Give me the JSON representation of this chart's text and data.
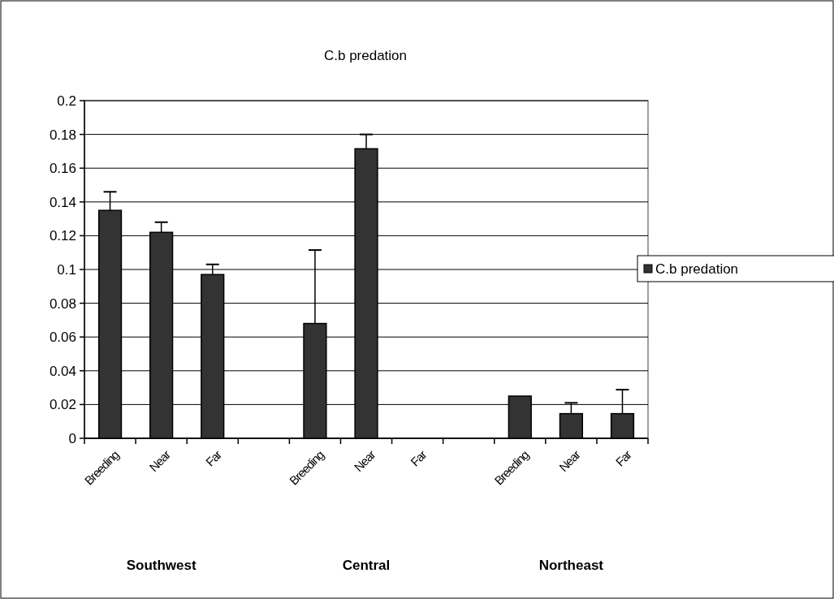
{
  "chart_data": {
    "type": "bar",
    "title": "C.b predation",
    "categories": [
      "Breeding",
      "Near",
      "Far",
      null,
      "Breeding",
      "Near",
      "Far",
      null,
      "Breeding",
      "Near",
      "Far"
    ],
    "series": [
      {
        "name": "C.b predation",
        "color": "#333333",
        "values": [
          0.135,
          0.122,
          0.097,
          null,
          0.068,
          0.1715,
          null,
          null,
          0.025,
          0.0146,
          0.0146
        ],
        "errors": [
          [
            0.135,
            0.146
          ],
          [
            0.122,
            0.128
          ],
          [
            0.097,
            0.103
          ],
          null,
          [
            0.068,
            0.1115
          ],
          [
            0.1715,
            0.18
          ],
          null,
          null,
          null,
          [
            0.0146,
            0.021
          ],
          [
            0.0146,
            0.0288
          ]
        ]
      }
    ],
    "ylim": [
      0,
      0.2
    ],
    "yticks": [
      0,
      0.02,
      0.04,
      0.06,
      0.08,
      0.1,
      0.12,
      0.14,
      0.16,
      0.18,
      0.2
    ],
    "grid": "y",
    "legend": "right",
    "annotations": [
      "Southwest",
      "Central",
      "Northeast"
    ]
  }
}
